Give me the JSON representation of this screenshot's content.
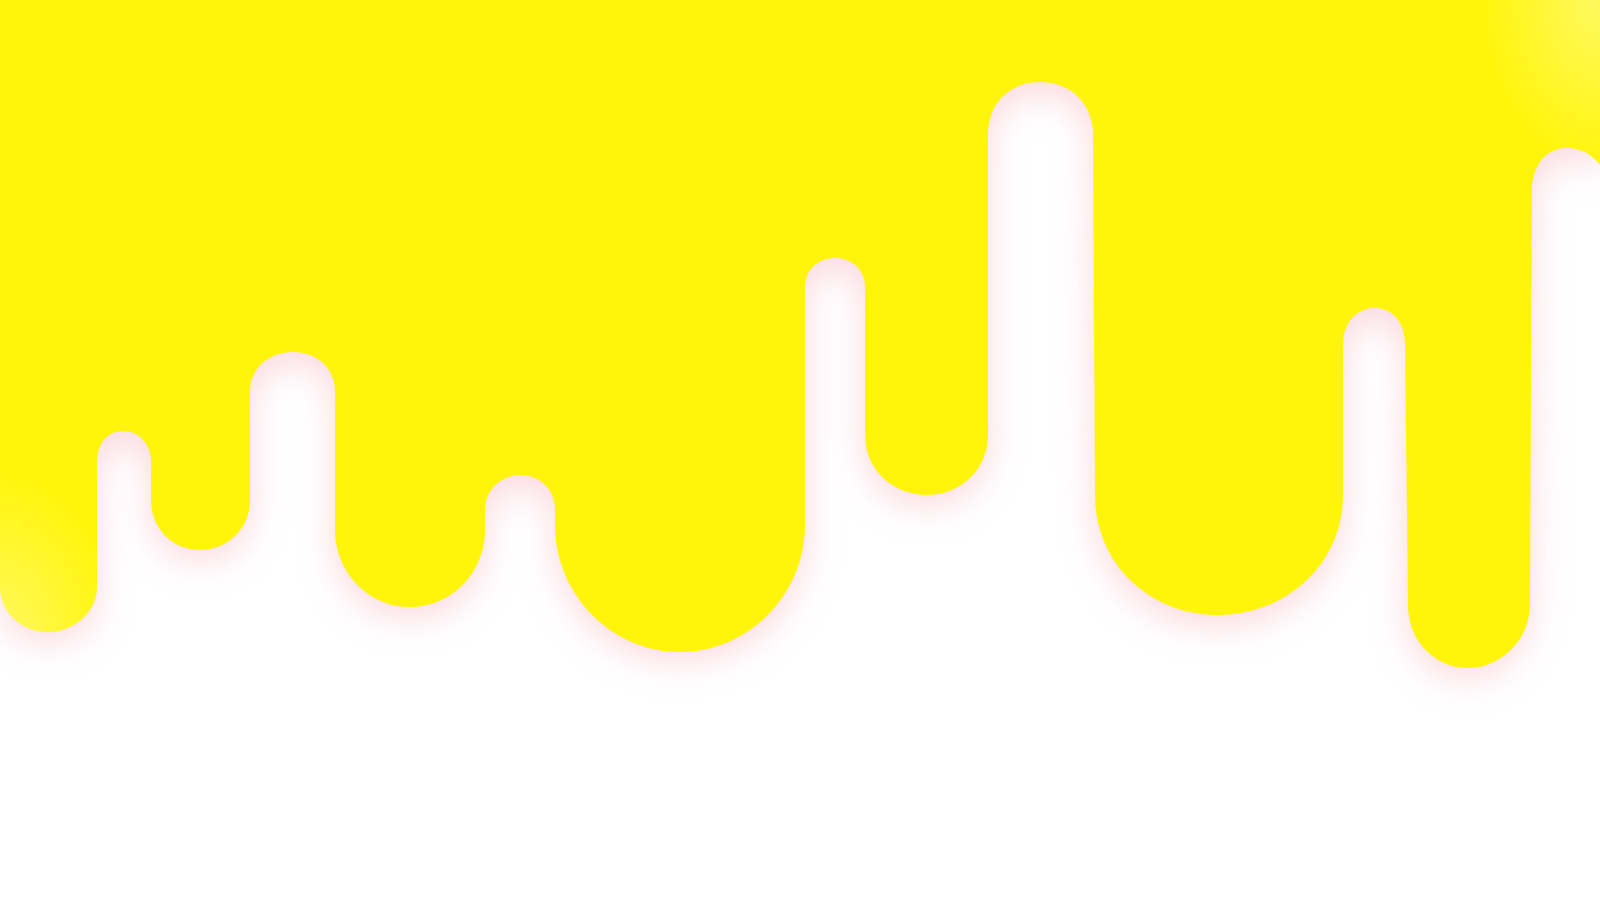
{
  "page": {
    "background_color": "#ffffff"
  },
  "drip": {
    "fill_color": "#fff50a",
    "glow_color": "#f7b8c4",
    "edge_highlight_color": "#fff96a"
  }
}
